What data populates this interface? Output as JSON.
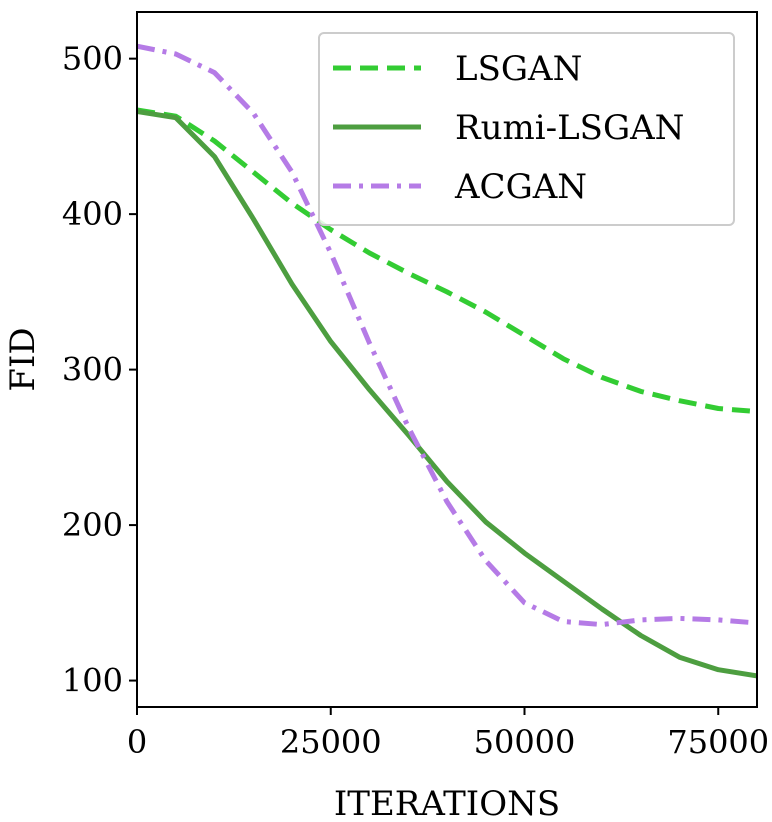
{
  "chart_data": {
    "type": "line",
    "xlabel": "ITERATIONS",
    "ylabel": "FID",
    "xlim": [
      0,
      80000
    ],
    "ylim": [
      83,
      530
    ],
    "xticks": [
      0,
      25000,
      50000,
      75000
    ],
    "xtick_labels": [
      "0",
      "25000",
      "50000",
      "75000"
    ],
    "yticks": [
      100,
      200,
      300,
      400,
      500
    ],
    "ytick_labels": [
      "100",
      "200",
      "300",
      "400",
      "500"
    ],
    "grid": false,
    "legend_position": "top-right",
    "series": [
      {
        "name": "LSGAN",
        "color": "#33cc33",
        "style": "dashed",
        "x": [
          0,
          5000,
          10000,
          15000,
          20000,
          25000,
          30000,
          35000,
          40000,
          45000,
          50000,
          55000,
          60000,
          65000,
          70000,
          75000,
          80000
        ],
        "y": [
          467,
          463,
          447,
          427,
          407,
          390,
          375,
          362,
          350,
          337,
          322,
          307,
          295,
          286,
          280,
          275,
          273
        ]
      },
      {
        "name": "Rumi-LSGAN",
        "color": "#4d9e40",
        "style": "solid",
        "x": [
          0,
          5000,
          10000,
          15000,
          20000,
          25000,
          30000,
          35000,
          40000,
          45000,
          50000,
          55000,
          60000,
          65000,
          70000,
          75000,
          80000
        ],
        "y": [
          466,
          462,
          437,
          397,
          355,
          318,
          287,
          258,
          228,
          202,
          182,
          164,
          146,
          129,
          115,
          107,
          103
        ]
      },
      {
        "name": "ACGAN",
        "color": "#b57be6",
        "style": "dashdot",
        "x": [
          0,
          5000,
          10000,
          15000,
          20000,
          25000,
          30000,
          35000,
          40000,
          45000,
          50000,
          55000,
          60000,
          65000,
          70000,
          75000,
          80000
        ],
        "y": [
          508,
          503,
          491,
          465,
          427,
          375,
          317,
          263,
          215,
          177,
          150,
          138,
          136,
          139,
          140,
          139,
          137
        ]
      }
    ]
  }
}
